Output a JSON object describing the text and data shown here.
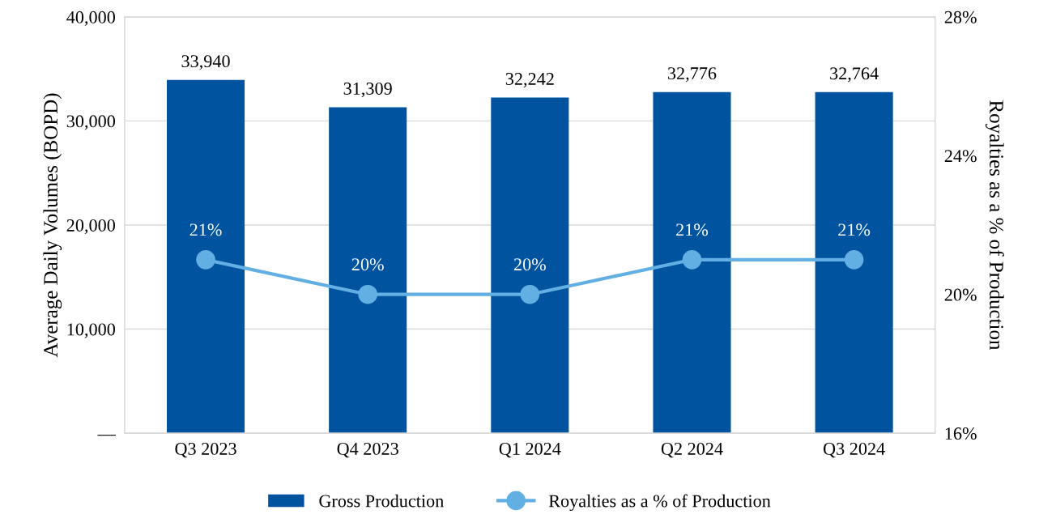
{
  "chart_data": {
    "type": "bar",
    "ylabel": "Average Daily Volumes (BOPD)",
    "y2label": "Royalties as a % of Production",
    "categories": [
      "Q3 2023",
      "Q4 2023",
      "Q1 2024",
      "Q2 2024",
      "Q3 2024"
    ],
    "series": [
      {
        "name": "Gross Production",
        "color": "#00539f",
        "values": [
          33940,
          31309,
          32242,
          32776,
          32764
        ],
        "value_labels": [
          "33,940",
          "31,309",
          "32,242",
          "32,776",
          "32,764"
        ]
      },
      {
        "name": "Royalties as a % of Production",
        "type": "line",
        "axis": "y2",
        "color": "#62afe3",
        "marker": "circle",
        "values": [
          21,
          20,
          20,
          21,
          21
        ],
        "value_labels": [
          "21%",
          "20%",
          "20%",
          "21%",
          "21%"
        ]
      }
    ],
    "ylim": [
      0,
      40000
    ],
    "yticks": [
      {
        "value": 0,
        "label": "—"
      },
      {
        "value": 10000,
        "label": "10,000"
      },
      {
        "value": 20000,
        "label": "20,000"
      },
      {
        "value": 30000,
        "label": "30,000"
      },
      {
        "value": 40000,
        "label": "40,000"
      }
    ],
    "y2lim": [
      16,
      28
    ],
    "y2ticks": [
      {
        "value": 16,
        "label": "16%"
      },
      {
        "value": 20,
        "label": "20%"
      },
      {
        "value": 24,
        "label": "24%"
      },
      {
        "value": 28,
        "label": "28%"
      }
    ],
    "grid": "y",
    "legend": "bottom"
  }
}
